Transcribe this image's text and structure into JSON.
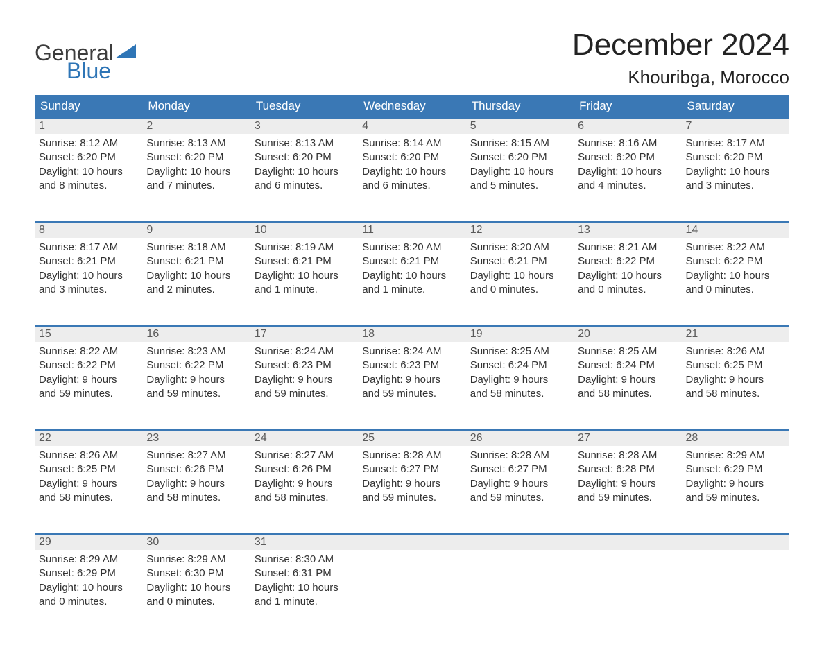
{
  "brand": {
    "word1": "General",
    "word2": "Blue",
    "word1_color": "#3d3d3d",
    "word2_color": "#2e75b6",
    "wedge_color": "#2e75b6"
  },
  "title": {
    "month": "December 2024",
    "location": "Khouribga, Morocco",
    "title_fontsize": 44,
    "location_fontsize": 26,
    "text_color": "#232323"
  },
  "calendar": {
    "header_bg": "#3a78b5",
    "header_text_color": "#ffffff",
    "daynum_bg": "#ededed",
    "daynum_color": "#5a5a5a",
    "row_border_color": "#3a78b5",
    "body_text_color": "#333333",
    "days_of_week": [
      "Sunday",
      "Monday",
      "Tuesday",
      "Wednesday",
      "Thursday",
      "Friday",
      "Saturday"
    ],
    "weeks": [
      [
        {
          "n": "1",
          "sunrise": "Sunrise: 8:12 AM",
          "sunset": "Sunset: 6:20 PM",
          "daylight1": "Daylight: 10 hours",
          "daylight2": "and 8 minutes."
        },
        {
          "n": "2",
          "sunrise": "Sunrise: 8:13 AM",
          "sunset": "Sunset: 6:20 PM",
          "daylight1": "Daylight: 10 hours",
          "daylight2": "and 7 minutes."
        },
        {
          "n": "3",
          "sunrise": "Sunrise: 8:13 AM",
          "sunset": "Sunset: 6:20 PM",
          "daylight1": "Daylight: 10 hours",
          "daylight2": "and 6 minutes."
        },
        {
          "n": "4",
          "sunrise": "Sunrise: 8:14 AM",
          "sunset": "Sunset: 6:20 PM",
          "daylight1": "Daylight: 10 hours",
          "daylight2": "and 6 minutes."
        },
        {
          "n": "5",
          "sunrise": "Sunrise: 8:15 AM",
          "sunset": "Sunset: 6:20 PM",
          "daylight1": "Daylight: 10 hours",
          "daylight2": "and 5 minutes."
        },
        {
          "n": "6",
          "sunrise": "Sunrise: 8:16 AM",
          "sunset": "Sunset: 6:20 PM",
          "daylight1": "Daylight: 10 hours",
          "daylight2": "and 4 minutes."
        },
        {
          "n": "7",
          "sunrise": "Sunrise: 8:17 AM",
          "sunset": "Sunset: 6:20 PM",
          "daylight1": "Daylight: 10 hours",
          "daylight2": "and 3 minutes."
        }
      ],
      [
        {
          "n": "8",
          "sunrise": "Sunrise: 8:17 AM",
          "sunset": "Sunset: 6:21 PM",
          "daylight1": "Daylight: 10 hours",
          "daylight2": "and 3 minutes."
        },
        {
          "n": "9",
          "sunrise": "Sunrise: 8:18 AM",
          "sunset": "Sunset: 6:21 PM",
          "daylight1": "Daylight: 10 hours",
          "daylight2": "and 2 minutes."
        },
        {
          "n": "10",
          "sunrise": "Sunrise: 8:19 AM",
          "sunset": "Sunset: 6:21 PM",
          "daylight1": "Daylight: 10 hours",
          "daylight2": "and 1 minute."
        },
        {
          "n": "11",
          "sunrise": "Sunrise: 8:20 AM",
          "sunset": "Sunset: 6:21 PM",
          "daylight1": "Daylight: 10 hours",
          "daylight2": "and 1 minute."
        },
        {
          "n": "12",
          "sunrise": "Sunrise: 8:20 AM",
          "sunset": "Sunset: 6:21 PM",
          "daylight1": "Daylight: 10 hours",
          "daylight2": "and 0 minutes."
        },
        {
          "n": "13",
          "sunrise": "Sunrise: 8:21 AM",
          "sunset": "Sunset: 6:22 PM",
          "daylight1": "Daylight: 10 hours",
          "daylight2": "and 0 minutes."
        },
        {
          "n": "14",
          "sunrise": "Sunrise: 8:22 AM",
          "sunset": "Sunset: 6:22 PM",
          "daylight1": "Daylight: 10 hours",
          "daylight2": "and 0 minutes."
        }
      ],
      [
        {
          "n": "15",
          "sunrise": "Sunrise: 8:22 AM",
          "sunset": "Sunset: 6:22 PM",
          "daylight1": "Daylight: 9 hours",
          "daylight2": "and 59 minutes."
        },
        {
          "n": "16",
          "sunrise": "Sunrise: 8:23 AM",
          "sunset": "Sunset: 6:22 PM",
          "daylight1": "Daylight: 9 hours",
          "daylight2": "and 59 minutes."
        },
        {
          "n": "17",
          "sunrise": "Sunrise: 8:24 AM",
          "sunset": "Sunset: 6:23 PM",
          "daylight1": "Daylight: 9 hours",
          "daylight2": "and 59 minutes."
        },
        {
          "n": "18",
          "sunrise": "Sunrise: 8:24 AM",
          "sunset": "Sunset: 6:23 PM",
          "daylight1": "Daylight: 9 hours",
          "daylight2": "and 59 minutes."
        },
        {
          "n": "19",
          "sunrise": "Sunrise: 8:25 AM",
          "sunset": "Sunset: 6:24 PM",
          "daylight1": "Daylight: 9 hours",
          "daylight2": "and 58 minutes."
        },
        {
          "n": "20",
          "sunrise": "Sunrise: 8:25 AM",
          "sunset": "Sunset: 6:24 PM",
          "daylight1": "Daylight: 9 hours",
          "daylight2": "and 58 minutes."
        },
        {
          "n": "21",
          "sunrise": "Sunrise: 8:26 AM",
          "sunset": "Sunset: 6:25 PM",
          "daylight1": "Daylight: 9 hours",
          "daylight2": "and 58 minutes."
        }
      ],
      [
        {
          "n": "22",
          "sunrise": "Sunrise: 8:26 AM",
          "sunset": "Sunset: 6:25 PM",
          "daylight1": "Daylight: 9 hours",
          "daylight2": "and 58 minutes."
        },
        {
          "n": "23",
          "sunrise": "Sunrise: 8:27 AM",
          "sunset": "Sunset: 6:26 PM",
          "daylight1": "Daylight: 9 hours",
          "daylight2": "and 58 minutes."
        },
        {
          "n": "24",
          "sunrise": "Sunrise: 8:27 AM",
          "sunset": "Sunset: 6:26 PM",
          "daylight1": "Daylight: 9 hours",
          "daylight2": "and 58 minutes."
        },
        {
          "n": "25",
          "sunrise": "Sunrise: 8:28 AM",
          "sunset": "Sunset: 6:27 PM",
          "daylight1": "Daylight: 9 hours",
          "daylight2": "and 59 minutes."
        },
        {
          "n": "26",
          "sunrise": "Sunrise: 8:28 AM",
          "sunset": "Sunset: 6:27 PM",
          "daylight1": "Daylight: 9 hours",
          "daylight2": "and 59 minutes."
        },
        {
          "n": "27",
          "sunrise": "Sunrise: 8:28 AM",
          "sunset": "Sunset: 6:28 PM",
          "daylight1": "Daylight: 9 hours",
          "daylight2": "and 59 minutes."
        },
        {
          "n": "28",
          "sunrise": "Sunrise: 8:29 AM",
          "sunset": "Sunset: 6:29 PM",
          "daylight1": "Daylight: 9 hours",
          "daylight2": "and 59 minutes."
        }
      ],
      [
        {
          "n": "29",
          "sunrise": "Sunrise: 8:29 AM",
          "sunset": "Sunset: 6:29 PM",
          "daylight1": "Daylight: 10 hours",
          "daylight2": "and 0 minutes."
        },
        {
          "n": "30",
          "sunrise": "Sunrise: 8:29 AM",
          "sunset": "Sunset: 6:30 PM",
          "daylight1": "Daylight: 10 hours",
          "daylight2": "and 0 minutes."
        },
        {
          "n": "31",
          "sunrise": "Sunrise: 8:30 AM",
          "sunset": "Sunset: 6:31 PM",
          "daylight1": "Daylight: 10 hours",
          "daylight2": "and 1 minute."
        },
        null,
        null,
        null,
        null
      ]
    ]
  }
}
